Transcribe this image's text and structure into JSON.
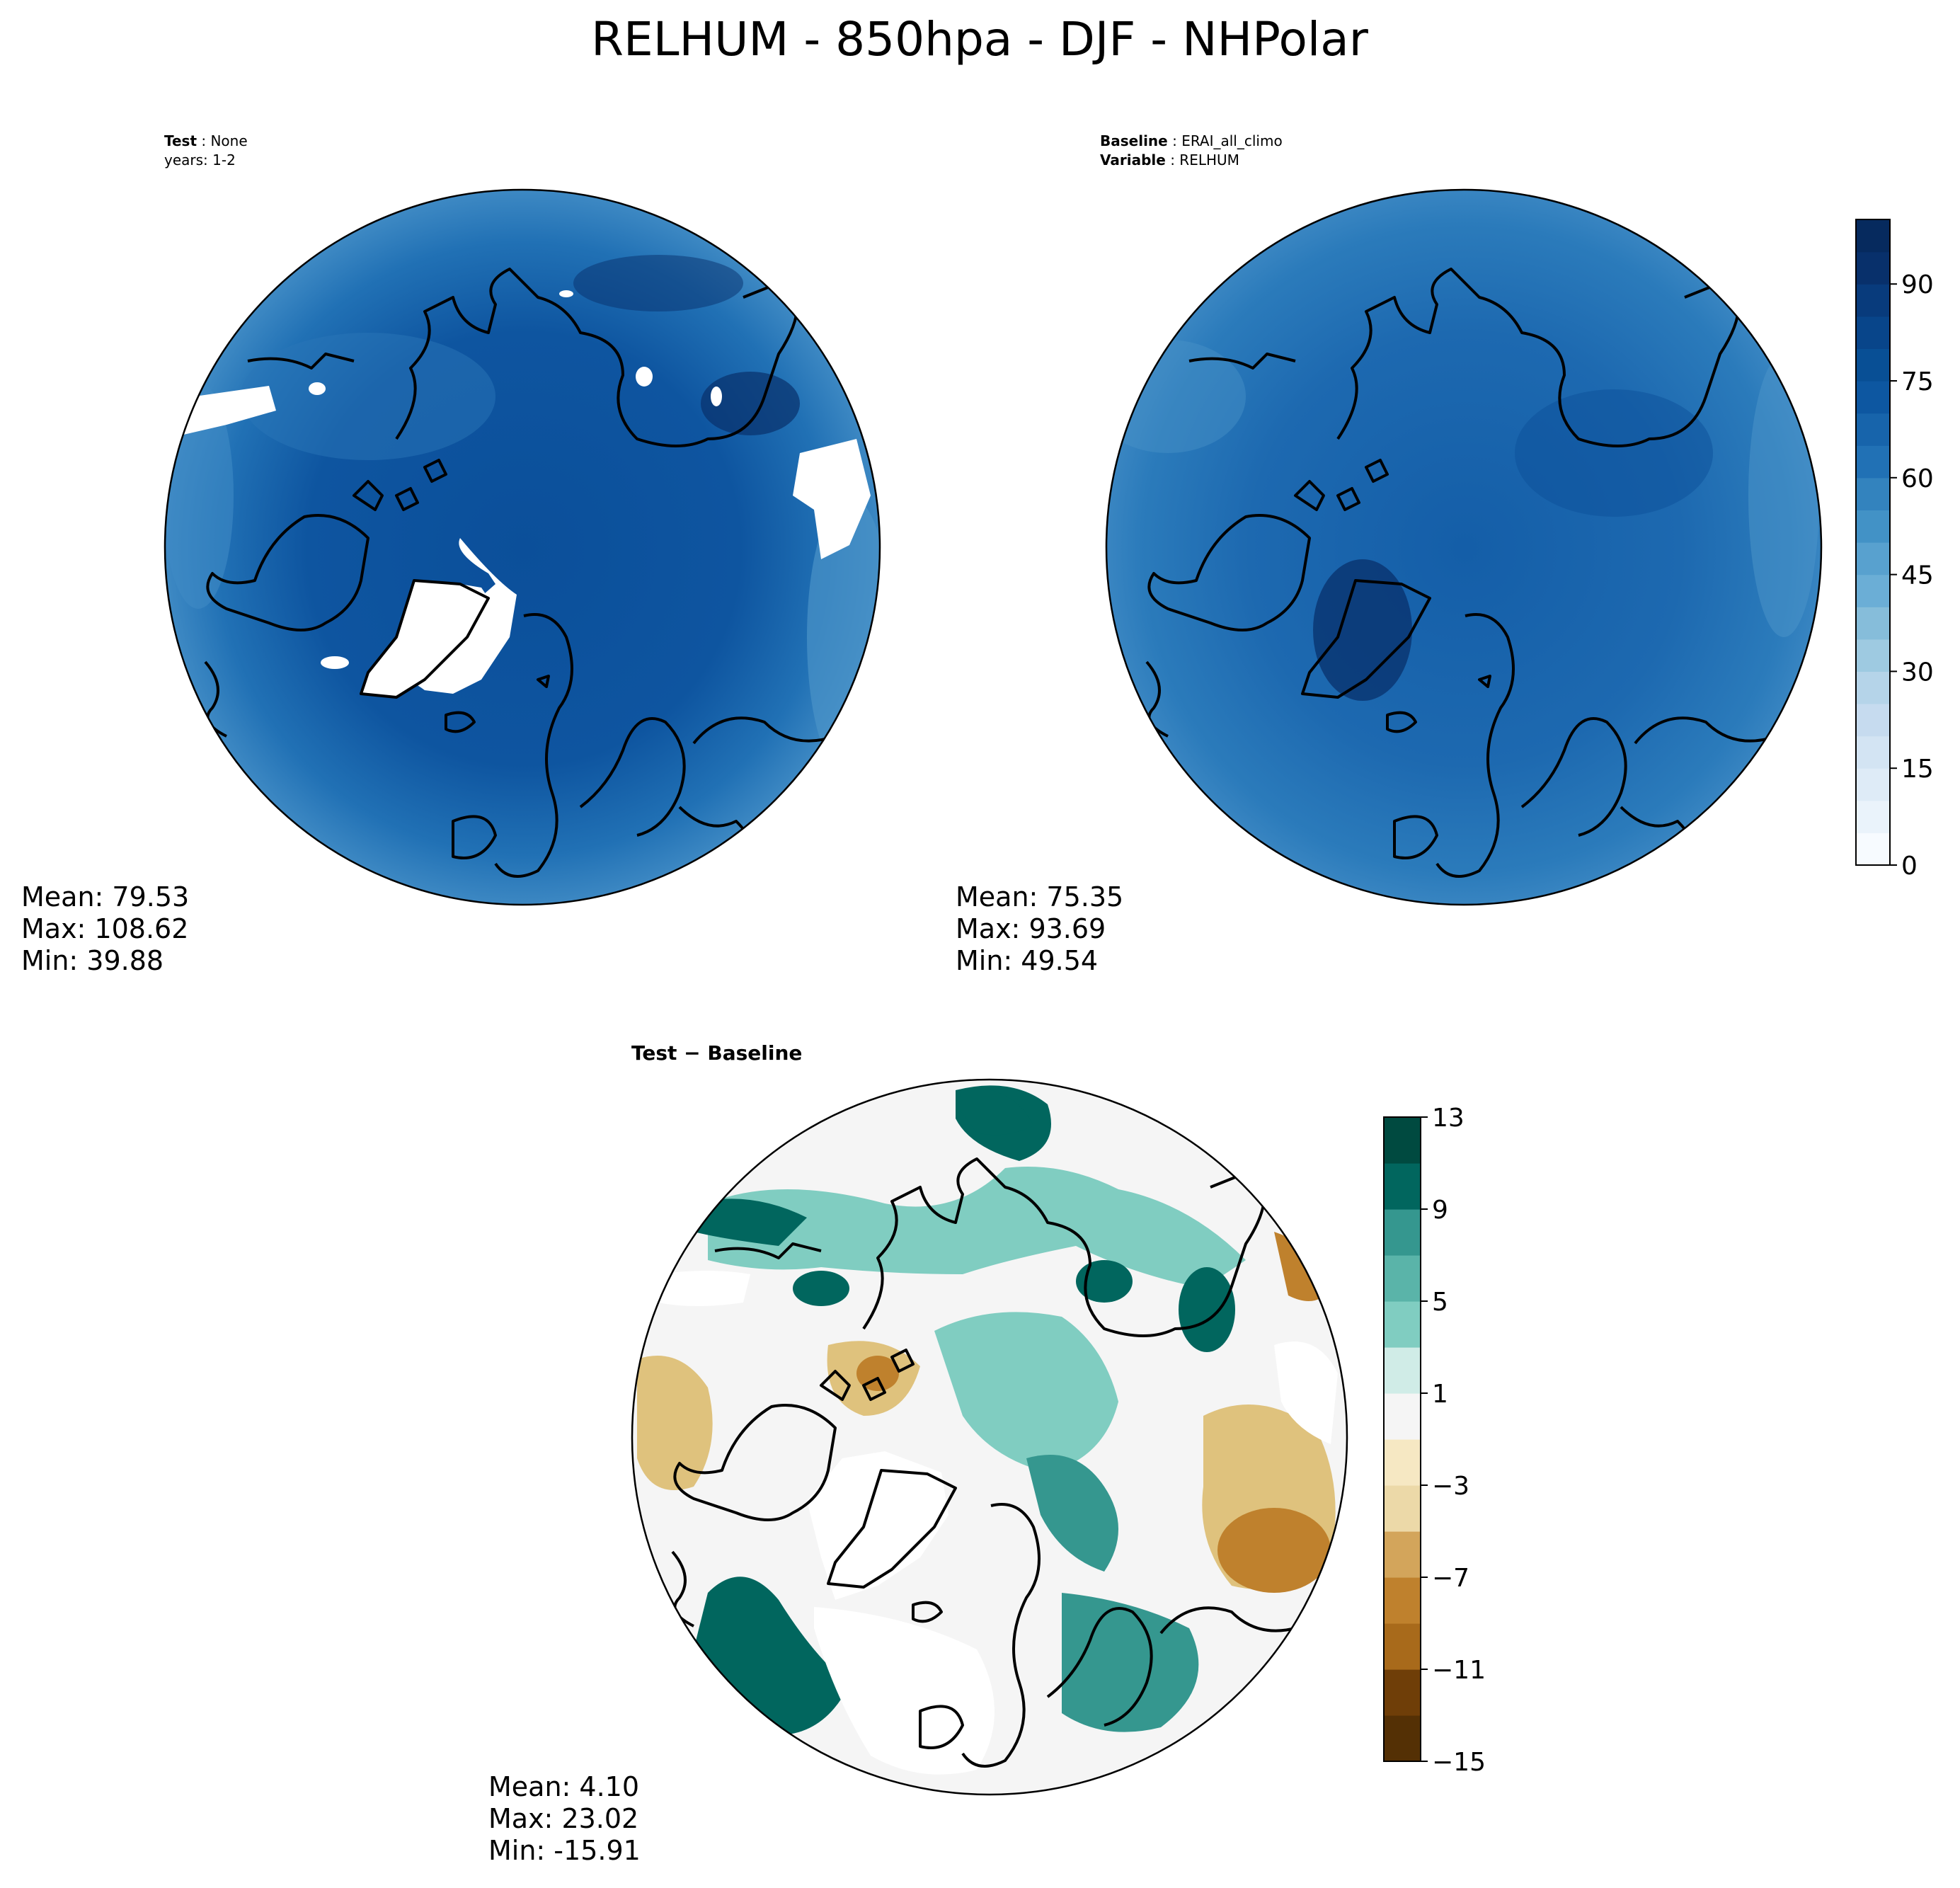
{
  "title": "RELHUM - 850hpa - DJF - NHPolar",
  "panels": [
    {
      "id": "test",
      "header": [
        {
          "key": "Test",
          "value": "None"
        },
        {
          "key": "",
          "value": "years: 1-2"
        }
      ],
      "stats": {
        "mean": "Mean: 79.53",
        "max": "Max: 108.62",
        "min": "Min: 39.88"
      }
    },
    {
      "id": "baseline",
      "header": [
        {
          "key": "Baseline",
          "value": "ERAI_all_climo"
        },
        {
          "key": "Variable",
          "value": "RELHUM"
        }
      ],
      "stats": {
        "mean": "Mean: 75.35",
        "max": "Max: 93.69",
        "min": "Min: 49.54"
      }
    },
    {
      "id": "diff",
      "header": [
        {
          "key": "Test − Baseline",
          "value": ""
        }
      ],
      "stats": {
        "mean": "Mean:  4.10",
        "max": "Max: 23.02",
        "min": "Min: -15.91"
      }
    }
  ],
  "colorbars": {
    "main": {
      "palette": "Blues",
      "min": 0,
      "max": 100,
      "ticks": [
        0,
        15,
        30,
        45,
        60,
        75,
        90
      ],
      "tick_labels": [
        "0",
        "15",
        "30",
        "45",
        "60",
        "75",
        "90"
      ],
      "levels": 20
    },
    "diff": {
      "palette": "BrBG",
      "min": -15,
      "max": 13,
      "ticks": [
        -15,
        -11,
        -7,
        -3,
        1,
        5,
        9,
        13
      ],
      "tick_labels": [
        "−15",
        "−11",
        "−7",
        "−3",
        "1",
        "5",
        "9",
        "13"
      ],
      "levels": 14
    }
  },
  "colors": {
    "ocean_test": "#0d57a1",
    "ocean_baseline": "#1f6db1",
    "missing": "#ffffff",
    "coast": "#000000"
  }
}
